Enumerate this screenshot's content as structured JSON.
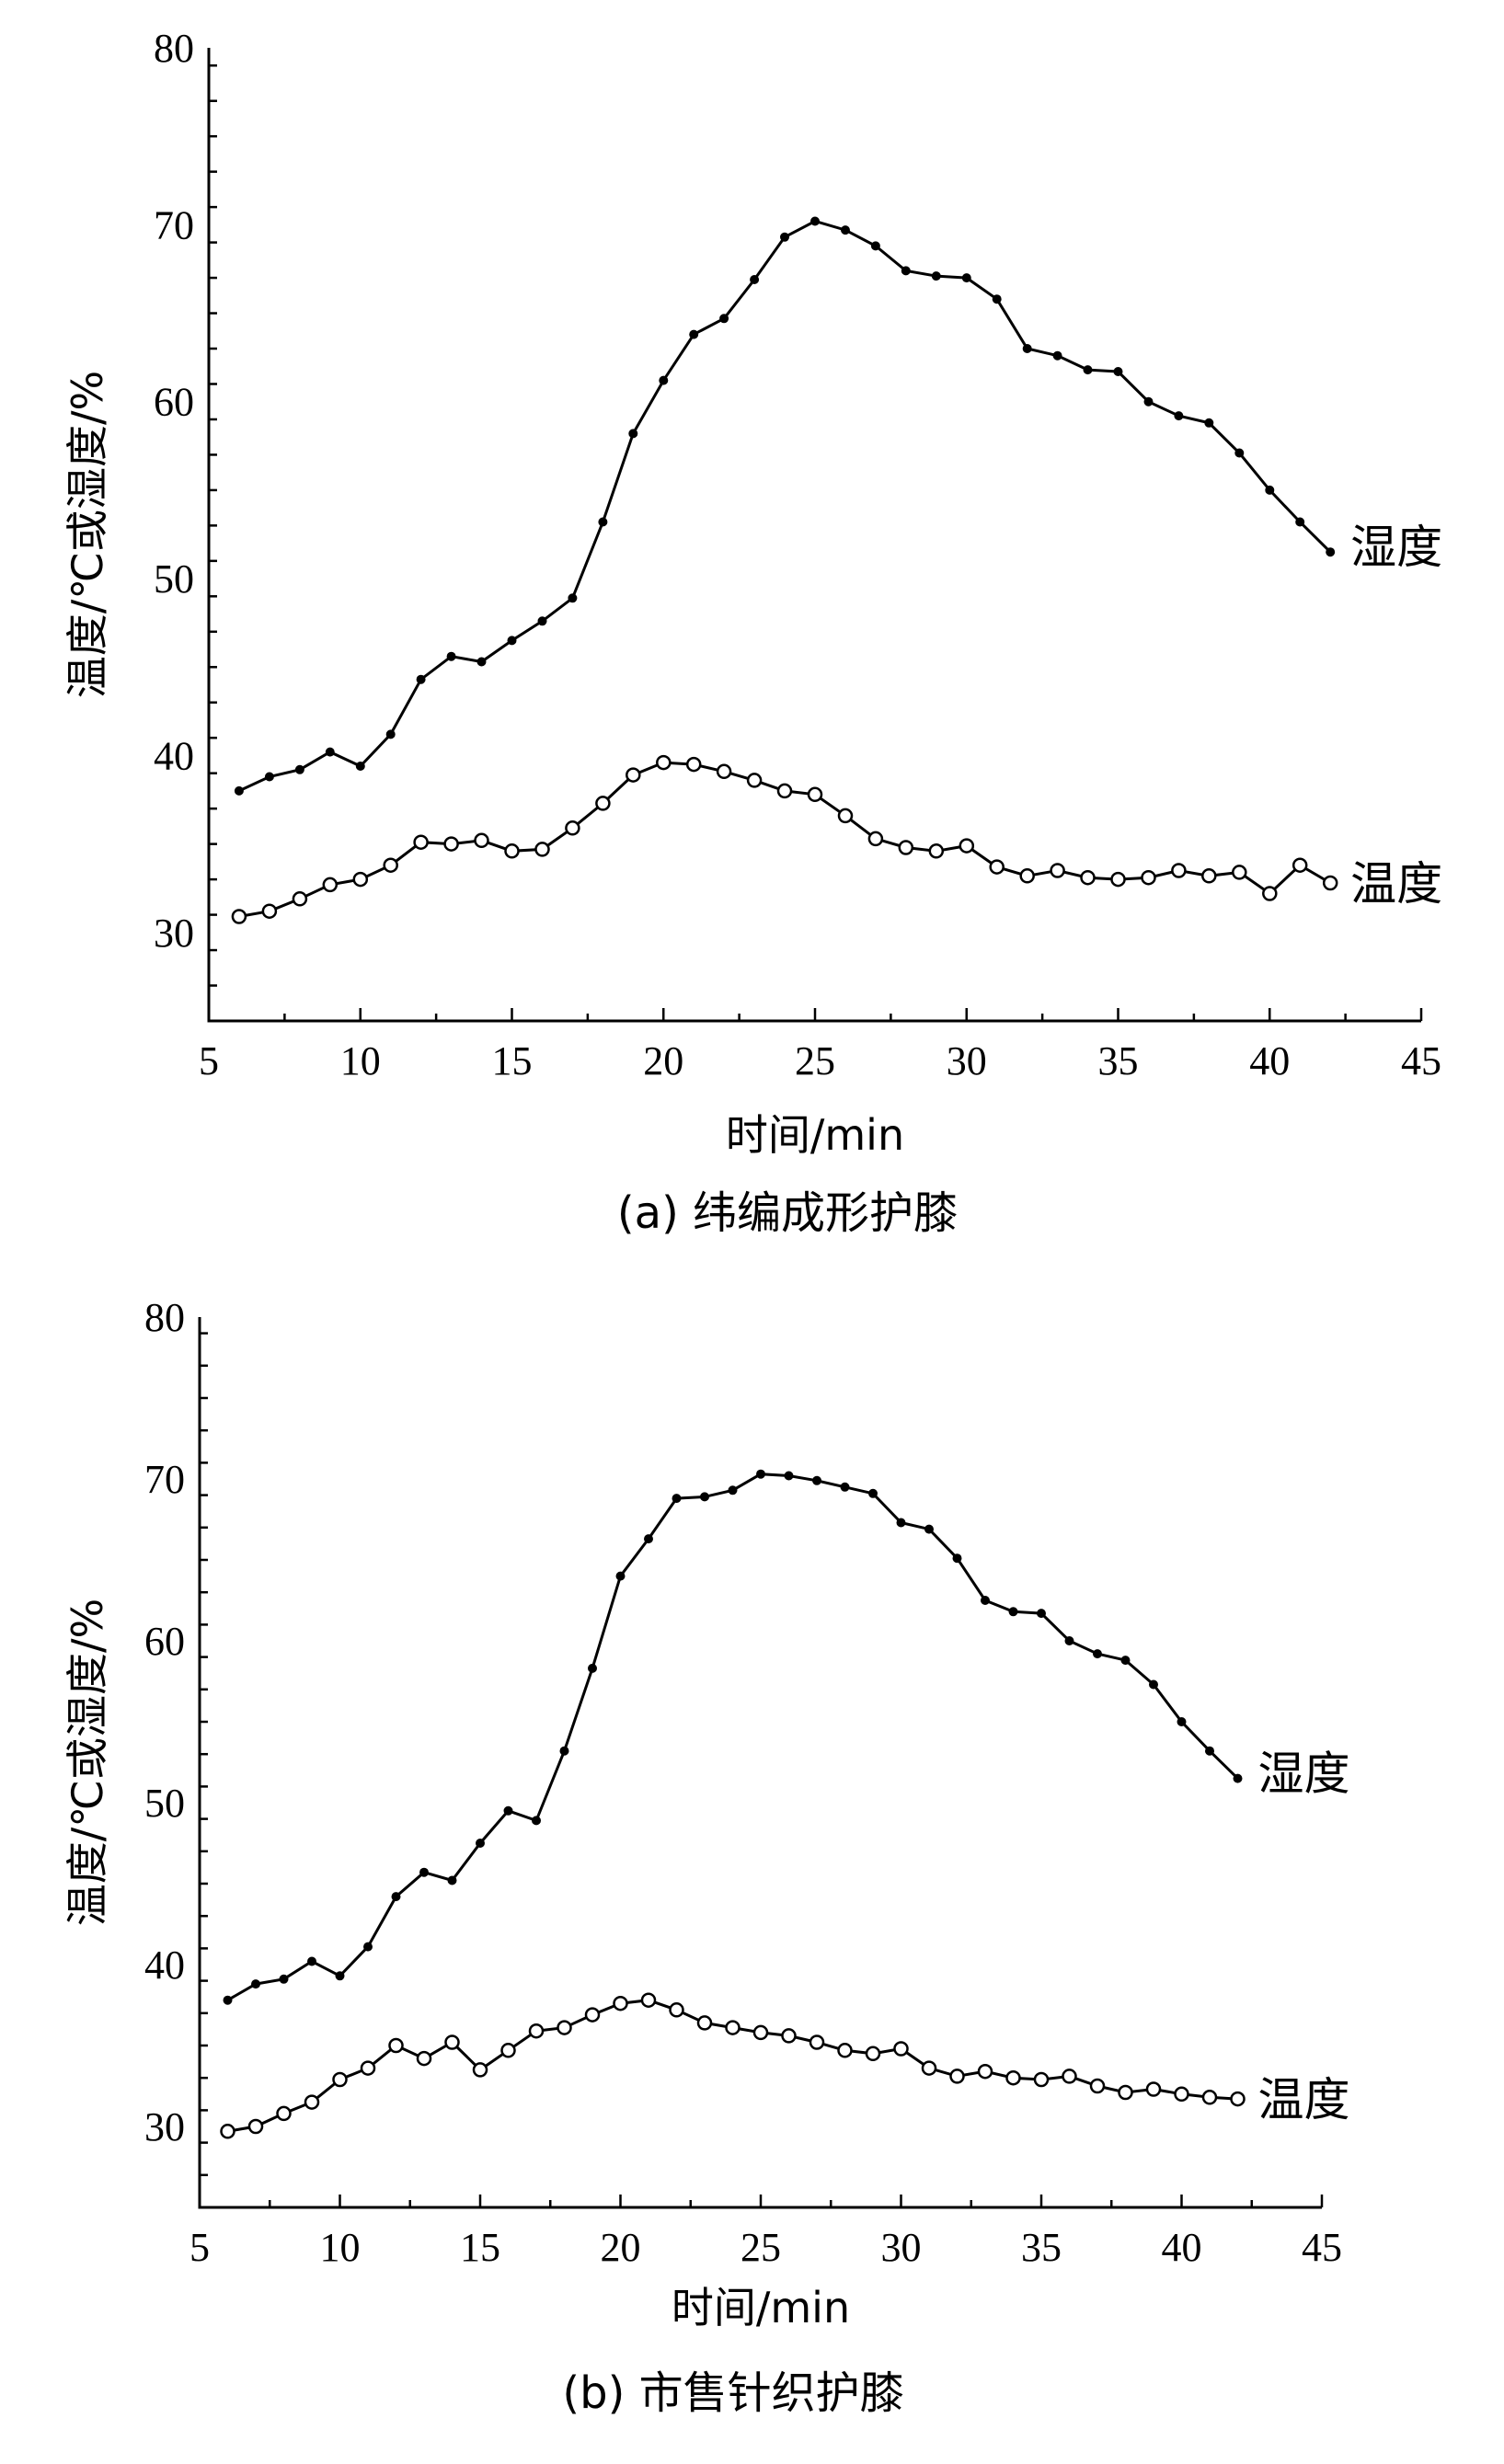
{
  "chart_data": [
    {
      "type": "line",
      "panel": "a",
      "caption": "(a) 纬编成形护膝",
      "xlabel": "时间/min",
      "ylabel": "温度/℃或湿度/%",
      "xlim": [
        5,
        45
      ],
      "ylim": [
        25,
        80
      ],
      "xticks": [
        5,
        10,
        15,
        20,
        25,
        30,
        35,
        40,
        45
      ],
      "yticks": [
        30,
        40,
        50,
        60,
        70,
        80
      ],
      "x": [
        6,
        7,
        8,
        9,
        10,
        11,
        12,
        13,
        14,
        15,
        16,
        17,
        18,
        19,
        20,
        21,
        22,
        23,
        24,
        25,
        26,
        27,
        28,
        29,
        30,
        31,
        32,
        33,
        34,
        35,
        36,
        37,
        38,
        39,
        40,
        41,
        42
      ],
      "series": [
        {
          "name": "湿度",
          "marker": "filled",
          "values": [
            38,
            38.8,
            39.2,
            40.2,
            39.4,
            41.2,
            44.3,
            45.6,
            45.3,
            46.5,
            47.6,
            48.9,
            53.2,
            58.2,
            61.2,
            63.8,
            64.7,
            66.9,
            69.3,
            70.2,
            69.7,
            68.8,
            67.4,
            67.1,
            67,
            65.8,
            63,
            62.6,
            61.8,
            61.7,
            60,
            59.2,
            58.8,
            57.1,
            55,
            53.2,
            51.5
          ]
        },
        {
          "name": "温度",
          "marker": "open",
          "values": [
            30.9,
            31.2,
            31.9,
            32.7,
            33,
            33.8,
            35.1,
            35,
            35.2,
            34.6,
            34.7,
            35.9,
            37.3,
            38.9,
            39.6,
            39.5,
            39.1,
            38.6,
            38,
            37.8,
            36.6,
            35.3,
            34.8,
            34.6,
            34.9,
            33.7,
            33.2,
            33.5,
            33.1,
            33,
            33.1,
            33.5,
            33.2,
            33.4,
            32.2,
            33.8,
            32.8
          ]
        }
      ]
    },
    {
      "type": "line",
      "panel": "b",
      "caption": "(b) 市售针织护膝",
      "xlabel": "时间/min",
      "ylabel": "温度/℃或湿度/%",
      "xlim": [
        5,
        45
      ],
      "ylim": [
        25,
        80
      ],
      "xticks": [
        5,
        10,
        15,
        20,
        25,
        30,
        35,
        40,
        45
      ],
      "yticks": [
        30,
        40,
        50,
        60,
        70,
        80
      ],
      "x": [
        6,
        7,
        8,
        9,
        10,
        11,
        12,
        13,
        14,
        15,
        16,
        17,
        18,
        19,
        20,
        21,
        22,
        23,
        24,
        25,
        26,
        27,
        28,
        29,
        30,
        31,
        32,
        33,
        34,
        35,
        36,
        37,
        38,
        39,
        40,
        41,
        42
      ],
      "series": [
        {
          "name": "湿度",
          "marker": "filled",
          "values": [
            37.8,
            38.8,
            39.1,
            40.2,
            39.3,
            41.1,
            44.2,
            45.7,
            45.2,
            47.5,
            49.5,
            48.9,
            53.2,
            58.3,
            64,
            66.3,
            68.8,
            68.9,
            69.3,
            70.3,
            70.2,
            69.9,
            69.5,
            69.1,
            67.3,
            66.9,
            65.1,
            62.5,
            61.8,
            61.7,
            60,
            59.2,
            58.8,
            57.3,
            55,
            53.2,
            51.5
          ]
        },
        {
          "name": "温度",
          "marker": "open",
          "values": [
            29.7,
            30,
            30.8,
            31.5,
            32.9,
            33.6,
            35,
            34.2,
            35.2,
            33.5,
            34.7,
            35.9,
            36.1,
            36.9,
            37.6,
            37.8,
            37.2,
            36.4,
            36.1,
            35.8,
            35.6,
            35.2,
            34.7,
            34.5,
            34.8,
            33.6,
            33.1,
            33.4,
            33,
            32.9,
            33.1,
            32.5,
            32.1,
            32.3,
            32,
            31.8,
            31.7
          ]
        }
      ]
    }
  ]
}
